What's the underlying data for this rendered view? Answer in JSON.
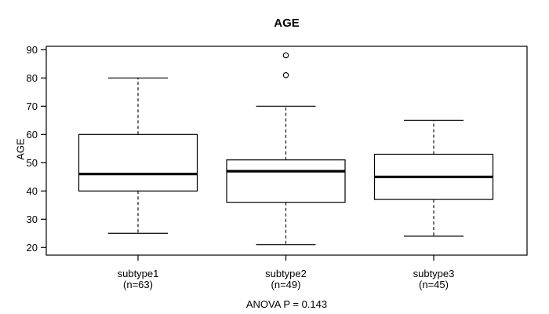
{
  "chart_data": {
    "type": "boxplot",
    "title": "AGE",
    "ylabel": "AGE",
    "subtitle": "ANOVA P = 0.143",
    "ylim": [
      17.3,
      91.2
    ],
    "yticks": [
      20,
      30,
      40,
      50,
      60,
      70,
      80,
      90
    ],
    "grid": false,
    "legend": false,
    "groups": [
      {
        "label": "subtype1",
        "count_label": "(n=63)",
        "whisker_low": 25,
        "q1": 40,
        "median": 46,
        "q3": 60,
        "whisker_high": 80,
        "outliers": []
      },
      {
        "label": "subtype2",
        "count_label": "(n=49)",
        "whisker_low": 21,
        "q1": 36,
        "median": 47,
        "q3": 51,
        "whisker_high": 70,
        "outliers": [
          81,
          88
        ]
      },
      {
        "label": "subtype3",
        "count_label": "(n=45)",
        "whisker_low": 24,
        "q1": 37,
        "median": 45,
        "q3": 53,
        "whisker_high": 65,
        "outliers": []
      }
    ],
    "colors": {
      "line": "#000000",
      "box_fill": "#ffffff",
      "background": "#ffffff"
    }
  }
}
